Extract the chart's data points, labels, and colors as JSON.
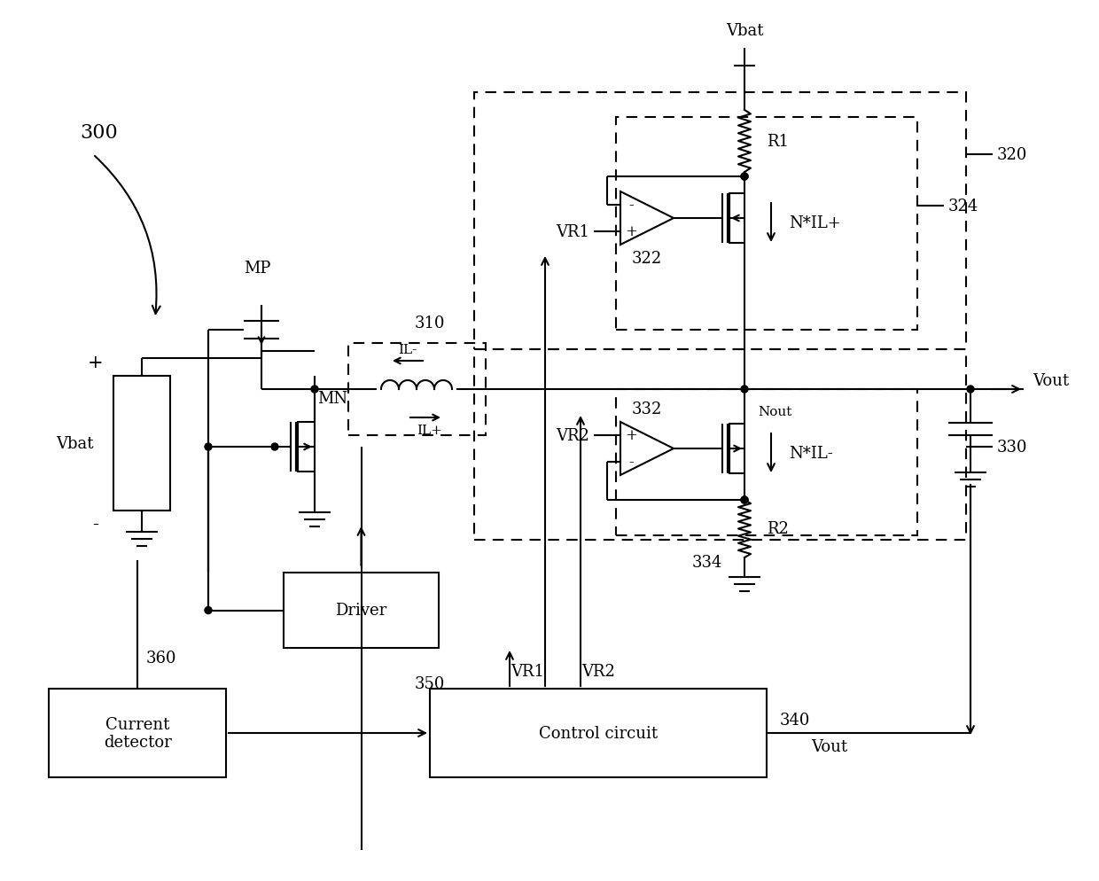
{
  "bg_color": "#ffffff",
  "lw": 1.5,
  "fs": 13,
  "label_300": "300",
  "label_310": "310",
  "label_320": "320",
  "label_322": "322",
  "label_324": "324",
  "label_330": "330",
  "label_332": "332",
  "label_334": "334",
  "label_340": "340",
  "label_350": "350",
  "label_360": "360",
  "label_MP": "MP",
  "label_MN": "MN",
  "label_Vbat_top": "Vbat",
  "label_Vbat_left": "Vbat",
  "label_Vout": "Vout",
  "label_Nout": "Nout",
  "label_R1": "R1",
  "label_R2": "R2",
  "label_VR1": "VR1",
  "label_VR2": "VR2",
  "label_NILplus": "N*IL+",
  "label_NILminus": "N*IL-",
  "label_ILplus": "IL+",
  "label_ILminus": "IL-",
  "label_Driver": "Driver",
  "label_Control": "Control circuit",
  "label_Current": "Current\ndetector",
  "label_plus": "+",
  "label_minus": "-"
}
